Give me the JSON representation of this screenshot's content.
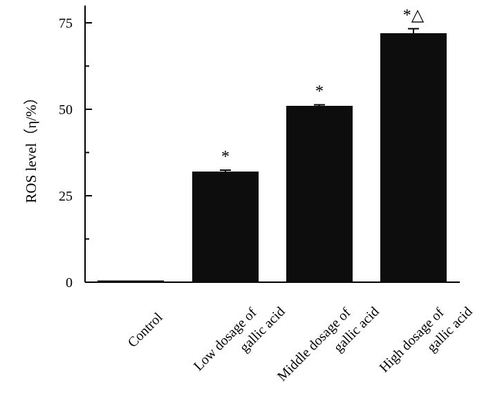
{
  "chart_data": {
    "type": "bar",
    "title": "",
    "xlabel": "",
    "ylabel": "ROS level（η/%）",
    "ylim": [
      0,
      80
    ],
    "yticks": [
      0,
      25,
      50,
      75
    ],
    "grid": false,
    "categories": [
      [
        "Control"
      ],
      [
        "Low dosage of",
        "gallic acid"
      ],
      [
        "Middle dosage of",
        "gallic acid"
      ],
      [
        "High dosage of",
        "gallic acid"
      ]
    ],
    "values": [
      0.5,
      32,
      51,
      72
    ],
    "errors": [
      0,
      0.4,
      0.3,
      1.3
    ],
    "annotations": [
      "",
      "*",
      "*",
      "*△"
    ],
    "bar_color": "#0d0d0d"
  }
}
